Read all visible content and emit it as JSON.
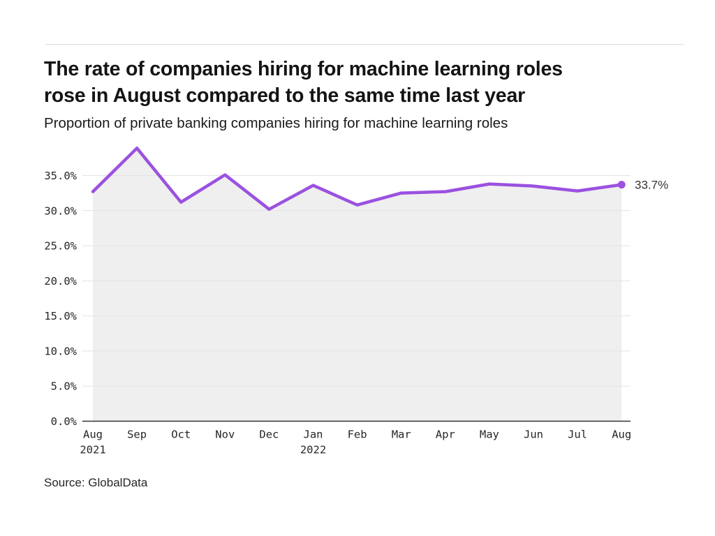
{
  "header": {
    "title": "The rate of companies hiring for machine learning roles rose in August compared to the same time last year",
    "title_lines": [
      "The rate of companies hiring for machine learning roles",
      "rose in August compared to the same time last year"
    ],
    "subtitle": "Proportion of private banking companies hiring for machine learning roles"
  },
  "footer": {
    "source": "Source: GlobalData"
  },
  "chart_data": {
    "type": "area",
    "title": "Proportion of private banking companies hiring for machine learning roles",
    "categories": [
      "Aug 2021",
      "Sep",
      "Oct",
      "Nov",
      "Dec",
      "Jan 2022",
      "Feb",
      "Mar",
      "Apr",
      "May",
      "Jun",
      "Jul",
      "Aug"
    ],
    "month_labels": [
      {
        "month": "Aug",
        "year": "2021"
      },
      {
        "month": "Sep"
      },
      {
        "month": "Oct"
      },
      {
        "month": "Nov"
      },
      {
        "month": "Dec"
      },
      {
        "month": "Jan",
        "year": "2022"
      },
      {
        "month": "Feb"
      },
      {
        "month": "Mar"
      },
      {
        "month": "Apr"
      },
      {
        "month": "May"
      },
      {
        "month": "Jun"
      },
      {
        "month": "Jul"
      },
      {
        "month": "Aug"
      }
    ],
    "values": [
      32.7,
      38.9,
      31.2,
      35.1,
      30.2,
      33.6,
      30.8,
      32.5,
      32.7,
      33.8,
      33.5,
      32.8,
      33.7
    ],
    "unit": "%",
    "end_point_label": "33.7%",
    "y_ticks": [
      {
        "label": "0.0%",
        "value": 0
      },
      {
        "label": "5.0%",
        "value": 5
      },
      {
        "label": "10.0%",
        "value": 10
      },
      {
        "label": "15.0%",
        "value": 15
      },
      {
        "label": "20.0%",
        "value": 20
      },
      {
        "label": "25.0%",
        "value": 25
      },
      {
        "label": "30.0%",
        "value": 30
      },
      {
        "label": "35.0%",
        "value": 35
      }
    ],
    "ylim": [
      0,
      40.5
    ],
    "xlabel": "",
    "ylabel": "",
    "grid": true,
    "legend": "none",
    "colors": {
      "line": "#9b51e0",
      "area_fill": "#efefef",
      "gridline": "#e2e2e2",
      "axis": "#333333",
      "tick_text": "#262626",
      "annotation_text": "#333333"
    }
  }
}
